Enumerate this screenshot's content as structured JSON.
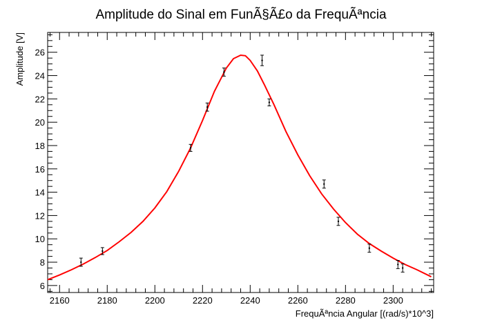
{
  "chart_data": {
    "type": "scatter",
    "title": "Amplitude do Sinal em FunÃ§Ã£o da FrequÃªncia",
    "xlabel": "FrequÃªncia Angular [(rad/s)*10^3]",
    "ylabel": "Amplitude [V]",
    "xlim": [
      2155,
      2317
    ],
    "ylim": [
      5.4,
      27.7
    ],
    "xticks": [
      2160,
      2180,
      2200,
      2220,
      2240,
      2260,
      2280,
      2300
    ],
    "yticks": [
      6,
      8,
      10,
      12,
      14,
      16,
      18,
      20,
      22,
      24,
      26
    ],
    "grid": false,
    "legend": "none",
    "points": [
      {
        "x": 2169,
        "y": 8.0,
        "err": 0.35
      },
      {
        "x": 2178,
        "y": 8.95,
        "err": 0.3
      },
      {
        "x": 2215,
        "y": 17.8,
        "err": 0.3
      },
      {
        "x": 2222,
        "y": 21.3,
        "err": 0.35
      },
      {
        "x": 2229,
        "y": 24.3,
        "err": 0.35
      },
      {
        "x": 2245,
        "y": 25.3,
        "err": 0.45
      },
      {
        "x": 2248,
        "y": 21.7,
        "err": 0.3
      },
      {
        "x": 2271,
        "y": 14.7,
        "err": 0.35
      },
      {
        "x": 2277,
        "y": 11.5,
        "err": 0.35
      },
      {
        "x": 2290,
        "y": 9.2,
        "err": 0.35
      },
      {
        "x": 2302,
        "y": 7.8,
        "err": 0.35
      },
      {
        "x": 2304,
        "y": 7.5,
        "err": 0.35
      }
    ],
    "fit": {
      "name": "fit",
      "color": "#ff0000",
      "x": [
        2155,
        2160,
        2165,
        2170,
        2175,
        2180,
        2185,
        2190,
        2195,
        2200,
        2205,
        2210,
        2215,
        2220,
        2225,
        2230,
        2233,
        2236,
        2238,
        2240,
        2243,
        2246,
        2250,
        2255,
        2260,
        2265,
        2270,
        2275,
        2280,
        2285,
        2290,
        2295,
        2300,
        2305,
        2310,
        2316
      ],
      "y": [
        6.5,
        6.9,
        7.35,
        7.85,
        8.4,
        9.0,
        9.75,
        10.55,
        11.5,
        12.65,
        14.05,
        15.8,
        17.8,
        20.15,
        22.65,
        24.65,
        25.45,
        25.75,
        25.7,
        25.3,
        24.4,
        23.2,
        21.5,
        19.2,
        17.2,
        15.4,
        13.85,
        12.55,
        11.4,
        10.4,
        9.6,
        8.95,
        8.35,
        7.8,
        7.35,
        6.75
      ]
    },
    "colors": {
      "points": "#000000",
      "fit": "#ff0000"
    }
  }
}
